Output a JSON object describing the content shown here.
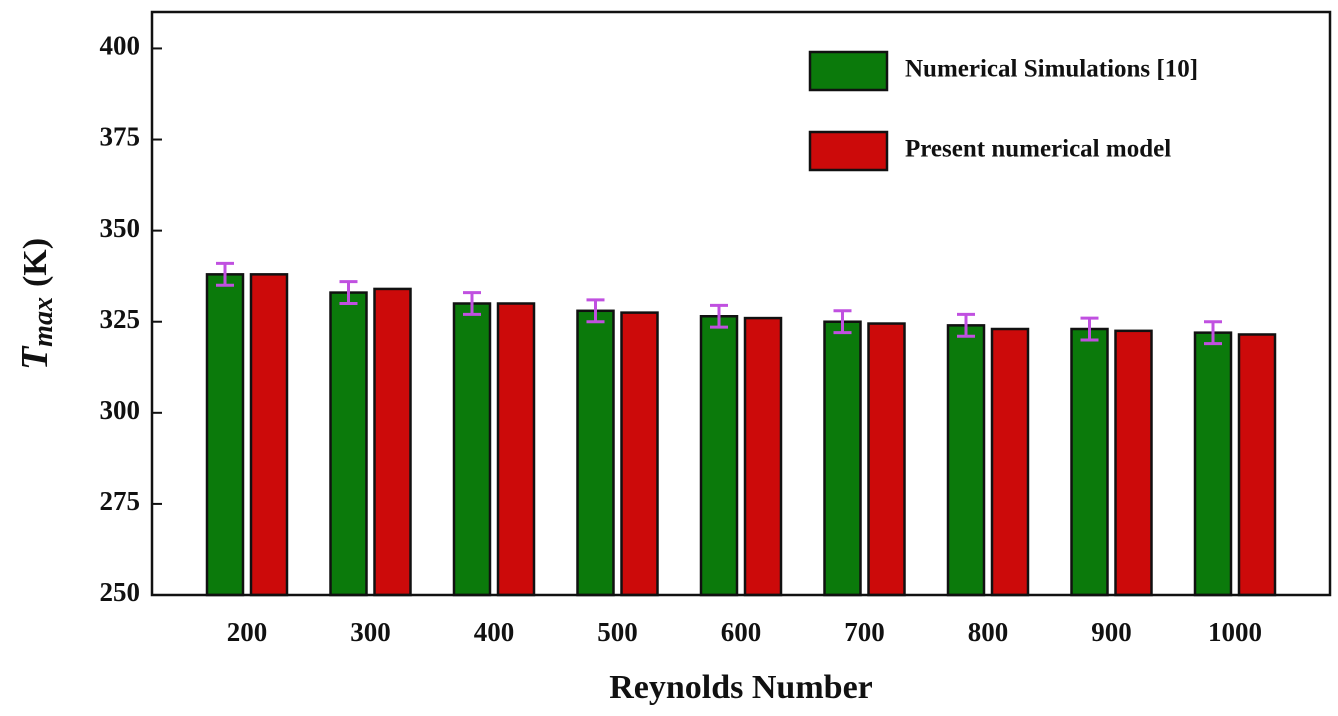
{
  "chart_data": {
    "type": "bar",
    "x_label": "Reynolds Number",
    "y_label_symbol": "T",
    "y_label_subscript": "max",
    "y_label_unit": "(K)",
    "categories": [
      "200",
      "300",
      "400",
      "500",
      "600",
      "700",
      "800",
      "900",
      "1000"
    ],
    "series": [
      {
        "name": "Numerical Simulations [10]",
        "color": "#0b7a0b",
        "values": [
          338,
          333,
          330,
          328,
          326.5,
          325,
          324,
          323,
          322
        ],
        "errors": [
          3,
          3,
          3,
          3,
          3,
          3,
          3,
          3,
          3
        ],
        "error_color": "#c050e0"
      },
      {
        "name": "Present numerical model",
        "color": "#cc0a0a",
        "values": [
          338,
          334,
          330,
          327.5,
          326,
          324.5,
          323,
          322.5,
          321.5
        ]
      }
    ],
    "ylim": [
      250,
      410
    ],
    "yticks": [
      250,
      275,
      300,
      325,
      350,
      375,
      400
    ],
    "legend": "upper right"
  }
}
